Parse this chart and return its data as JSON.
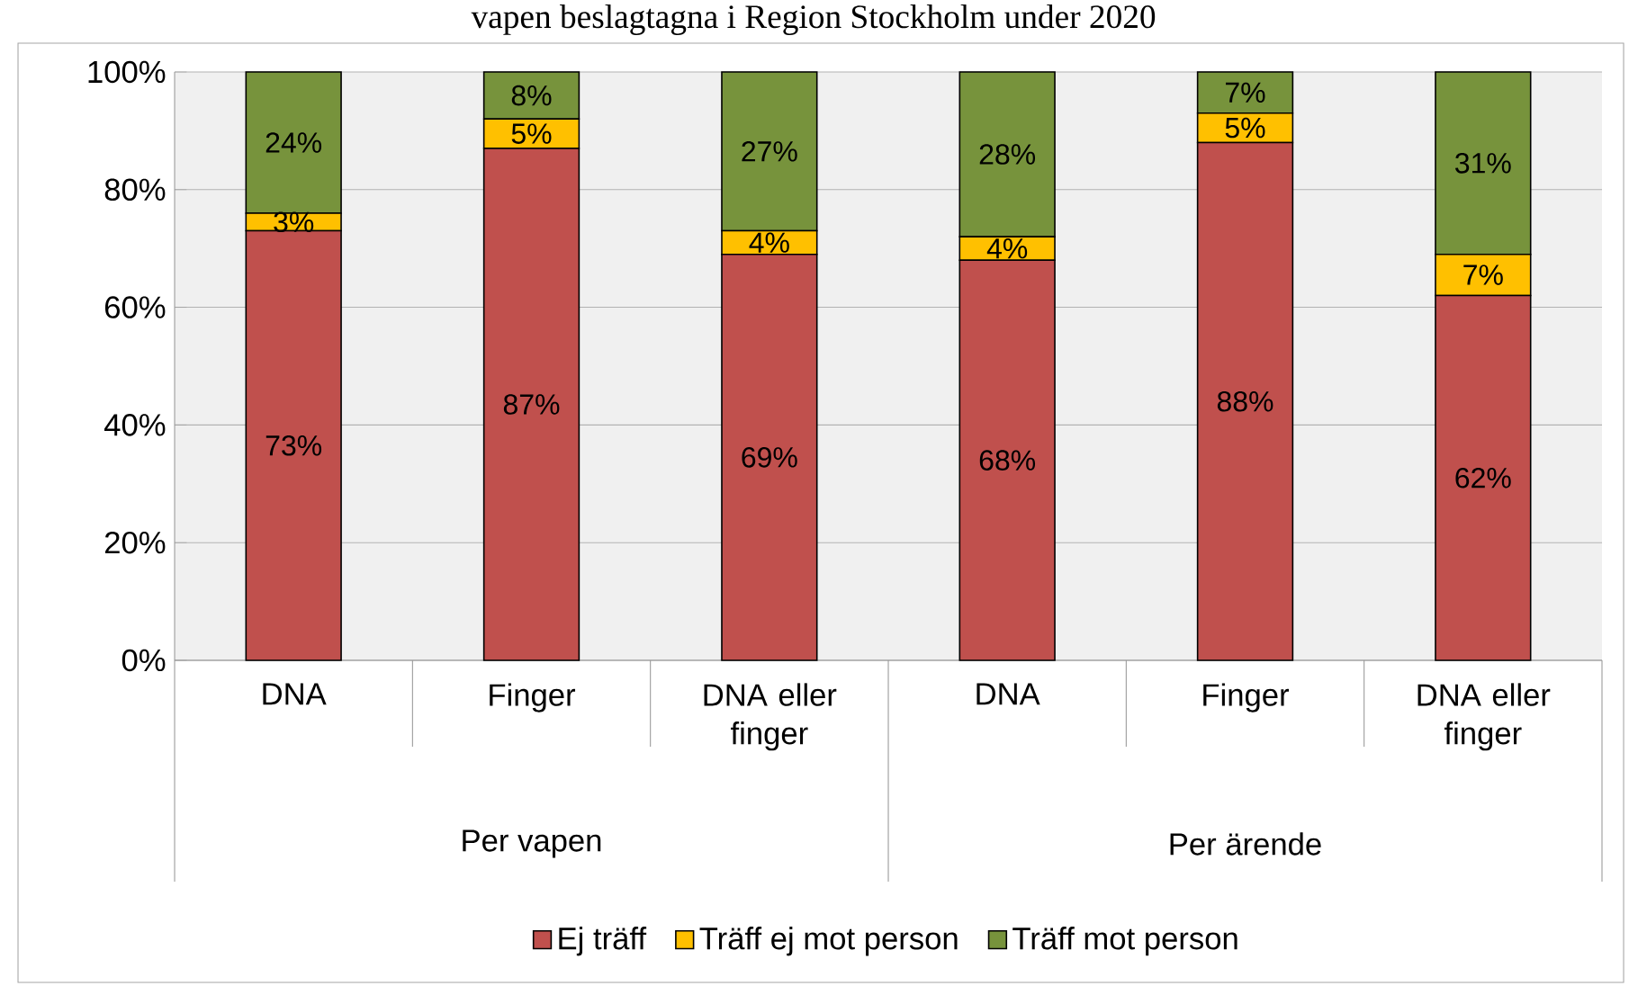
{
  "chart_data": {
    "type": "bar",
    "stacked": true,
    "title": "vapen beslagtagna i Region Stockholm under 2020",
    "categories": [
      "DNA",
      "Finger",
      "DNA eller finger",
      "DNA",
      "Finger",
      "DNA eller finger"
    ],
    "annotations": [
      "Per vapen",
      "Per ärende"
    ],
    "series": [
      {
        "name": "Ej träff",
        "color": "#c0504d",
        "values": [
          73,
          87,
          69,
          68,
          88,
          62
        ],
        "value_labels": [
          "73%",
          "87%",
          "69%",
          "68%",
          "88%",
          "62%"
        ]
      },
      {
        "name": "Träff ej mot person",
        "color": "#ffc000",
        "values": [
          3,
          5,
          4,
          4,
          5,
          7
        ],
        "value_labels": [
          "3%",
          "5%",
          "4%",
          "4%",
          "5%",
          "7%"
        ]
      },
      {
        "name": "Träff mot person",
        "color": "#77933c",
        "values": [
          24,
          8,
          27,
          28,
          7,
          31
        ],
        "value_labels": [
          "24%",
          "8%",
          "27%",
          "28%",
          "7%",
          "31%"
        ]
      }
    ],
    "ylim": [
      0,
      100
    ],
    "yticks": [
      {
        "value": 0,
        "label": "0%"
      },
      {
        "value": 20,
        "label": "20%"
      },
      {
        "value": 40,
        "label": "40%"
      },
      {
        "value": 60,
        "label": "60%"
      },
      {
        "value": 80,
        "label": "80%"
      },
      {
        "value": 100,
        "label": "100%"
      }
    ],
    "grid": "y",
    "legend": "bottom"
  }
}
